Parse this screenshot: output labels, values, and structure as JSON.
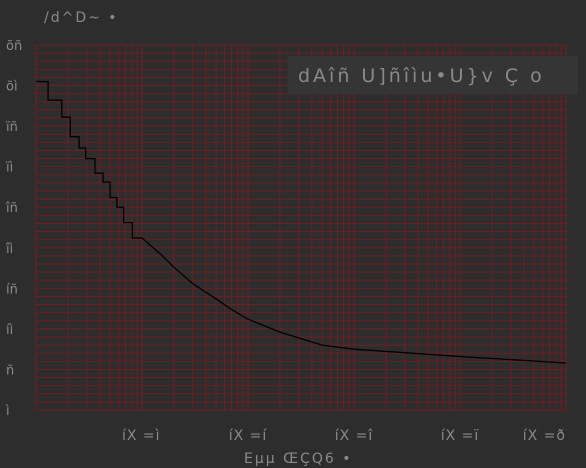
{
  "chart_data": {
    "type": "line",
    "title": "",
    "ylabel": "/d^D~ •",
    "xlabel": "Eµµ ŒÇQ6 •",
    "x_ticks": [
      "íX =ì",
      "íX =í",
      "íX =î",
      "íX =ï",
      "íX =ð"
    ],
    "y_ticks": [
      "õñ",
      "õì",
      "ïñ",
      "ïì",
      "îñ",
      "îì",
      "íñ",
      "íì",
      "ñ",
      "ì"
    ],
    "x_scale": "log",
    "xlim": [
      1,
      100000
    ],
    "ylim": [
      0,
      45
    ],
    "grid": true,
    "legend_position": "top-right",
    "series": [
      {
        "name": "dAîñ U]ñîìu•U}v Ç o",
        "x": [
          1,
          1.3,
          1.3,
          1.75,
          1.75,
          2.1,
          2.1,
          2.55,
          2.55,
          2.95,
          2.95,
          3.6,
          3.6,
          4.3,
          4.3,
          5,
          5,
          5.8,
          5.8,
          6.7,
          6.7,
          8.1,
          8.1,
          10,
          15,
          20,
          30,
          50,
          70,
          100,
          200,
          500,
          1000,
          10000,
          100000
        ],
        "y": [
          40.5,
          40.5,
          38.2,
          38.2,
          36.1,
          36.1,
          33.7,
          33.7,
          32.3,
          32.3,
          31.0,
          31.0,
          29.2,
          29.2,
          28.1,
          28.1,
          26.2,
          26.2,
          25.0,
          25.0,
          23.1,
          23.1,
          21.2,
          21.2,
          19.2,
          17.6,
          15.6,
          13.7,
          12.4,
          11.2,
          9.6,
          8.0,
          7.5,
          6.6,
          5.8
        ]
      }
    ]
  },
  "colors": {
    "background": "#2d2d2d",
    "plot_background": "#2d2d2d",
    "grid": "#6e1f24",
    "line": "#000000",
    "text": "#8a8a8a",
    "legend_background": "#353535"
  }
}
